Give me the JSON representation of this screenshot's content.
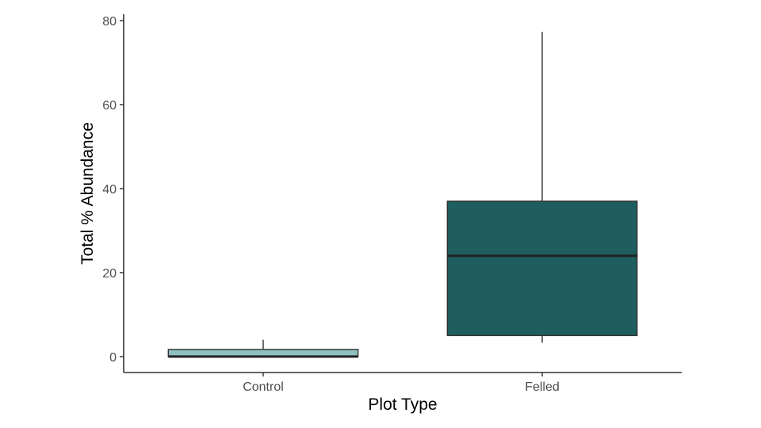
{
  "chart_data": {
    "type": "box",
    "title": "",
    "xlabel": "Plot Type",
    "ylabel": "Total % Abundance",
    "ylim": [
      -3.8,
      81.5
    ],
    "yticks": [
      0,
      20,
      40,
      60,
      80
    ],
    "grid": false,
    "categories": [
      "Control",
      "Felled"
    ],
    "boxes": [
      {
        "category": "Control",
        "min": 0,
        "q1": 0,
        "median": 0,
        "q3": 1.7,
        "max": 4.0,
        "fill": "#8fbfbf"
      },
      {
        "category": "Felled",
        "min": 3.3,
        "q1": 5.0,
        "median": 24.0,
        "q3": 37.0,
        "max": 77.3,
        "fill": "#1e5e5e"
      }
    ]
  }
}
